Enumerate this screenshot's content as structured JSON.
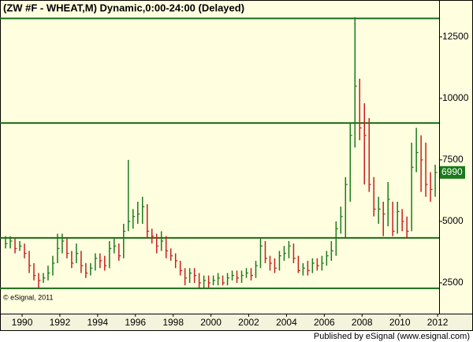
{
  "chart_data": {
    "type": "hlc",
    "title": "(ZW #F - WHEAT,M) Dynamic,0:00-24:00 (Delayed)",
    "copyright": "© eSignal, 2011",
    "footer": "Published by eSignal (www.esignal.com)",
    "xlim": [
      1988.83,
      2012.08
    ],
    "xticks": [
      1990,
      1992,
      1994,
      1996,
      1998,
      2000,
      2002,
      2004,
      2006,
      2008,
      2010,
      2012
    ],
    "ylim": [
      1250,
      14000
    ],
    "yticks": [
      2500,
      5000,
      7500,
      10000,
      12500
    ],
    "grid": false,
    "hlines": [
      13250,
      9000,
      4330,
      2280
    ],
    "hline_color": "#1a6b1a",
    "x": [
      1989.125,
      1989.375,
      1989.625,
      1989.875,
      1990.125,
      1990.375,
      1990.625,
      1990.875,
      1991.125,
      1991.375,
      1991.625,
      1991.875,
      1992.125,
      1992.375,
      1992.625,
      1992.875,
      1993.125,
      1993.375,
      1993.625,
      1993.875,
      1994.125,
      1994.375,
      1994.625,
      1994.875,
      1995.125,
      1995.375,
      1995.625,
      1995.875,
      1996.125,
      1996.375,
      1996.625,
      1996.875,
      1997.125,
      1997.375,
      1997.625,
      1997.875,
      1998.125,
      1998.375,
      1998.625,
      1998.875,
      1999.125,
      1999.375,
      1999.625,
      1999.875,
      2000.125,
      2000.375,
      2000.625,
      2000.875,
      2001.125,
      2001.375,
      2001.625,
      2001.875,
      2002.125,
      2002.375,
      2002.625,
      2002.875,
      2003.125,
      2003.375,
      2003.625,
      2003.875,
      2004.125,
      2004.375,
      2004.625,
      2004.875,
      2005.125,
      2005.375,
      2005.625,
      2005.875,
      2006.125,
      2006.375,
      2006.625,
      2006.875,
      2007.125,
      2007.375,
      2007.625,
      2007.875,
      2008.125,
      2008.375,
      2008.625,
      2008.875,
      2009.125,
      2009.375,
      2009.625,
      2009.875,
      2010.125,
      2010.375,
      2010.625,
      2010.875,
      2011.125,
      2011.375,
      2011.625,
      2011.875
    ],
    "series": [
      {
        "up_color": "#1a7a1a",
        "down_color": "#c81e1e",
        "high": [
          4400,
          4400,
          4300,
          4200,
          4100,
          3800,
          3300,
          2900,
          2900,
          3200,
          3600,
          4500,
          4500,
          4300,
          3800,
          4100,
          3800,
          3300,
          3300,
          3700,
          3700,
          3600,
          4200,
          4300,
          4100,
          4900,
          7500,
          5500,
          5800,
          6000,
          5700,
          4700,
          4500,
          4600,
          4400,
          3900,
          3700,
          3400,
          3100,
          3100,
          3100,
          2900,
          2800,
          2800,
          2800,
          2900,
          2800,
          2900,
          3000,
          3000,
          3000,
          3100,
          3100,
          3400,
          4300,
          4200,
          3600,
          3500,
          3800,
          4000,
          4200,
          4100,
          3600,
          3300,
          3400,
          3500,
          3500,
          3600,
          3800,
          4200,
          5000,
          5600,
          6800,
          9000,
          13300,
          10800,
          9800,
          9200,
          6800,
          6000,
          5800,
          6600,
          5800,
          5800,
          5500,
          5200,
          8200,
          8800,
          8500,
          8200,
          7000,
          7300
        ],
        "low": [
          3900,
          3900,
          3700,
          3800,
          3500,
          2900,
          2600,
          2300,
          2500,
          2600,
          2800,
          3300,
          3700,
          3500,
          3100,
          3300,
          2900,
          2700,
          2800,
          3000,
          3100,
          3000,
          3100,
          3700,
          3400,
          3500,
          4600,
          4700,
          4900,
          4900,
          4300,
          4100,
          3700,
          3800,
          3500,
          3400,
          3100,
          2800,
          2400,
          2500,
          2500,
          2300,
          2300,
          2300,
          2400,
          2400,
          2400,
          2400,
          2600,
          2500,
          2500,
          2700,
          2600,
          2700,
          3100,
          3300,
          3000,
          2900,
          3000,
          3400,
          3500,
          3300,
          2900,
          2800,
          2800,
          2900,
          3000,
          3000,
          3200,
          3400,
          3600,
          4500,
          4300,
          5800,
          8000,
          8300,
          6500,
          6200,
          5200,
          4900,
          4400,
          4800,
          4400,
          4500,
          4600,
          4300,
          4600,
          7000,
          6200,
          6000,
          5800,
          6000
        ],
        "close": [
          4100,
          4200,
          3900,
          4000,
          3700,
          3200,
          2800,
          2600,
          2700,
          2900,
          3300,
          3900,
          4200,
          3700,
          3300,
          3700,
          3200,
          2900,
          3100,
          3500,
          3400,
          3200,
          3900,
          4000,
          3600,
          4600,
          5000,
          5200,
          5300,
          5600,
          4600,
          4400,
          4000,
          4200,
          3800,
          3600,
          3400,
          3000,
          2700,
          2900,
          2800,
          2500,
          2600,
          2500,
          2600,
          2700,
          2500,
          2700,
          2800,
          2700,
          2800,
          2900,
          2800,
          3200,
          4000,
          3500,
          3300,
          3100,
          3600,
          3700,
          4000,
          3500,
          3000,
          3100,
          3000,
          3300,
          3200,
          3300,
          3600,
          3800,
          4700,
          5200,
          6500,
          8500,
          10500,
          8800,
          8500,
          6500,
          5500,
          5500,
          5300,
          5900,
          4600,
          5400,
          5000,
          4600,
          7200,
          7800,
          7500,
          6500,
          6300,
          6990
        ]
      }
    ]
  }
}
